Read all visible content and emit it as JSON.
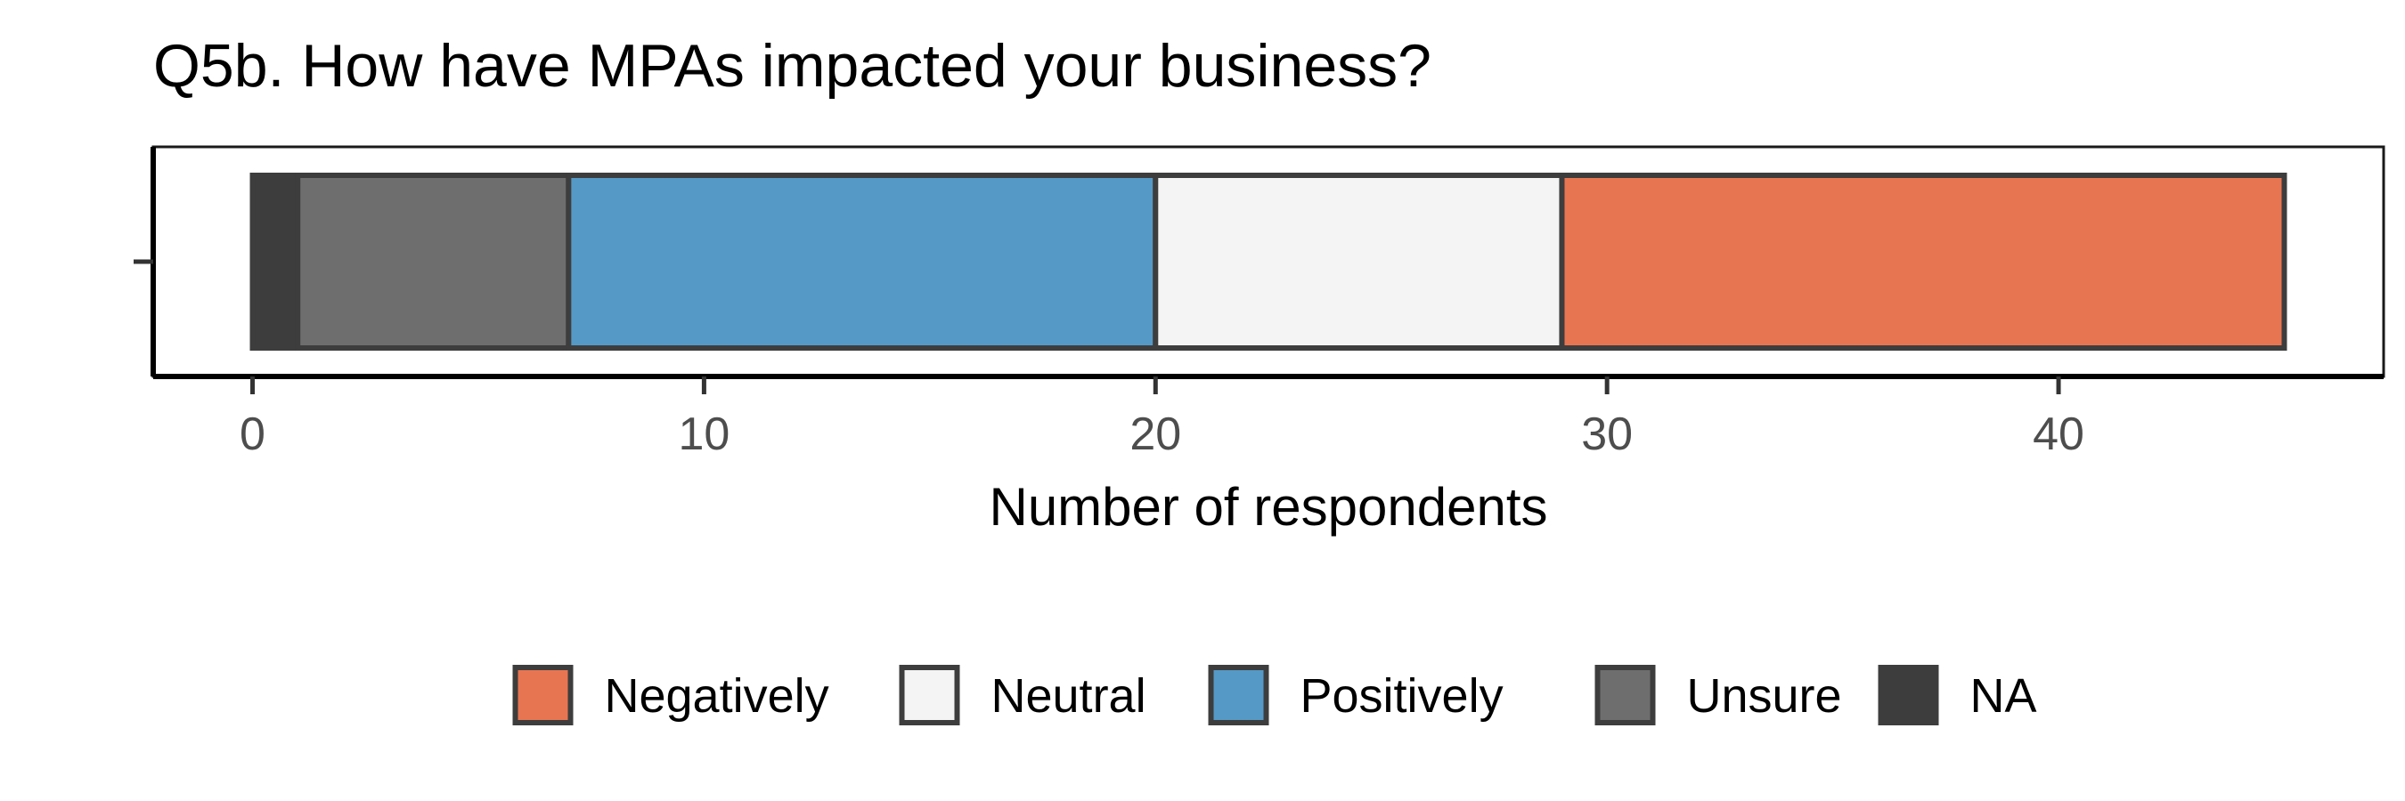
{
  "chart_data": {
    "type": "bar",
    "orientation": "horizontal",
    "stacked": true,
    "title": "Q5b. How have MPAs impacted your business?",
    "xlabel": "Number of respondents",
    "ylabel": "",
    "xlim": [
      -2.2,
      47.2
    ],
    "xticks": [
      0,
      10,
      20,
      30,
      40
    ],
    "grid": false,
    "legend_position": "bottom",
    "stack_order": [
      "NA",
      "Unsure",
      "Positively",
      "Neutral",
      "Negatively"
    ],
    "series": [
      {
        "name": "Negatively",
        "value": 16,
        "color": "#E87551"
      },
      {
        "name": "Neutral",
        "value": 9,
        "color": "#F4F4F4"
      },
      {
        "name": "Positively",
        "value": 13,
        "color": "#5599C6"
      },
      {
        "name": "Unsure",
        "value": 6,
        "color": "#6E6E6E"
      },
      {
        "name": "NA",
        "value": 1,
        "color": "#3D3D3D"
      }
    ],
    "bar_outline_color": "#3D3D3D"
  }
}
